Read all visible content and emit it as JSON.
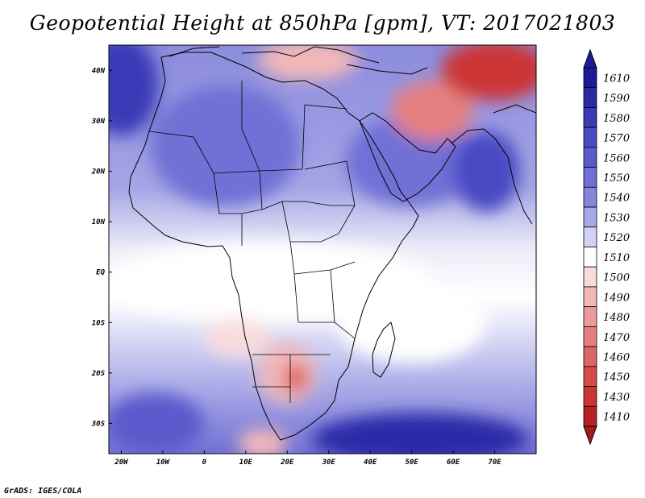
{
  "title": "Geopotential Height at 850hPa [gpm], VT: 2017021803",
  "credit": "GrADS: IGES/COLA",
  "map": {
    "lon_min": -23,
    "lon_max": 80,
    "lat_min": -36,
    "lat_max": 45,
    "x_ticks": [
      {
        "lon": -20,
        "label": "20W"
      },
      {
        "lon": -10,
        "label": "10W"
      },
      {
        "lon": 0,
        "label": "0"
      },
      {
        "lon": 10,
        "label": "10E"
      },
      {
        "lon": 20,
        "label": "20E"
      },
      {
        "lon": 30,
        "label": "30E"
      },
      {
        "lon": 40,
        "label": "40E"
      },
      {
        "lon": 50,
        "label": "50E"
      },
      {
        "lon": 60,
        "label": "60E"
      },
      {
        "lon": 70,
        "label": "70E"
      }
    ],
    "y_ticks": [
      {
        "lat": 40,
        "label": "40N"
      },
      {
        "lat": 30,
        "label": "30N"
      },
      {
        "lat": 20,
        "label": "20N"
      },
      {
        "lat": 10,
        "label": "10N"
      },
      {
        "lat": 0,
        "label": "EQ"
      },
      {
        "lat": -10,
        "label": "10S"
      },
      {
        "lat": -20,
        "label": "20S"
      },
      {
        "lat": -30,
        "label": "30S"
      }
    ]
  },
  "colorbar": [
    {
      "label": "1610",
      "color": "#1c1a96"
    },
    {
      "label": "1590",
      "color": "#2a2aa8"
    },
    {
      "label": "1580",
      "color": "#3a3ab8"
    },
    {
      "label": "1570",
      "color": "#4a4ac4"
    },
    {
      "label": "1560",
      "color": "#5a5acc"
    },
    {
      "label": "1550",
      "color": "#6f6fd6"
    },
    {
      "label": "1540",
      "color": "#8585de"
    },
    {
      "label": "1530",
      "color": "#a8a8ea"
    },
    {
      "label": "1520",
      "color": "#d2d2f6"
    },
    {
      "label": "1510",
      "color": "#ffffff"
    },
    {
      "label": "1500",
      "color": "#f8dcdc"
    },
    {
      "label": "1490",
      "color": "#f2b8b8"
    },
    {
      "label": "1480",
      "color": "#ec9a9a"
    },
    {
      "label": "1470",
      "color": "#e68080"
    },
    {
      "label": "1460",
      "color": "#e06464"
    },
    {
      "label": "1450",
      "color": "#d84a4a"
    },
    {
      "label": "1430",
      "color": "#cc3434"
    },
    {
      "label": "1410",
      "color": "#b82222"
    }
  ],
  "colorbar_below": "#a31a1a",
  "field_regions": [
    {
      "name": "north-atlantic-high",
      "lon": -20,
      "lat": 37,
      "rx": 9,
      "ry": 10,
      "color": "#3a3ab8"
    },
    {
      "name": "sahara-high",
      "lon": 5,
      "lat": 25,
      "rx": 18,
      "ry": 12,
      "color": "#6f6fd6"
    },
    {
      "name": "arabian-high",
      "lon": 50,
      "lat": 22,
      "rx": 16,
      "ry": 9,
      "color": "#6f6fd6"
    },
    {
      "name": "india-high",
      "lon": 68,
      "lat": 20,
      "rx": 8,
      "ry": 8,
      "color": "#4a4ac4"
    },
    {
      "name": "iran-low",
      "lon": 55,
      "lat": 32,
      "rx": 10,
      "ry": 6,
      "color": "#e68080"
    },
    {
      "name": "caspian-low",
      "lon": 70,
      "lat": 40,
      "rx": 13,
      "ry": 6,
      "color": "#cc3434"
    },
    {
      "name": "mediterranean-low",
      "lon": 25,
      "lat": 42,
      "rx": 12,
      "ry": 4,
      "color": "#f2b8b8"
    },
    {
      "name": "equatorial-band",
      "lon": 15,
      "lat": -2,
      "rx": 40,
      "ry": 8,
      "color": "#ffffff"
    },
    {
      "name": "indian-ocean-white",
      "lon": 50,
      "lat": -10,
      "rx": 18,
      "ry": 8,
      "color": "#ffffff"
    },
    {
      "name": "kalahari-low",
      "lon": 20,
      "lat": -20,
      "rx": 7,
      "ry": 6,
      "color": "#f2b8b8"
    },
    {
      "name": "botswana-low",
      "lon": 22,
      "lat": -21,
      "rx": 3,
      "ry": 3,
      "color": "#e06464"
    },
    {
      "name": "angola-low",
      "lon": 8,
      "lat": -13,
      "rx": 8,
      "ry": 4,
      "color": "#f8dcdc"
    },
    {
      "name": "cape-low",
      "lon": 14,
      "lat": -34,
      "rx": 6,
      "ry": 3,
      "color": "#f2b8b8"
    },
    {
      "name": "south-indian-high",
      "lon": 52,
      "lat": -33,
      "rx": 26,
      "ry": 5,
      "color": "#2a2aa8"
    },
    {
      "name": "south-atlantic-high",
      "lon": -12,
      "lat": -30,
      "rx": 12,
      "ry": 6,
      "color": "#5a5acc"
    }
  ]
}
